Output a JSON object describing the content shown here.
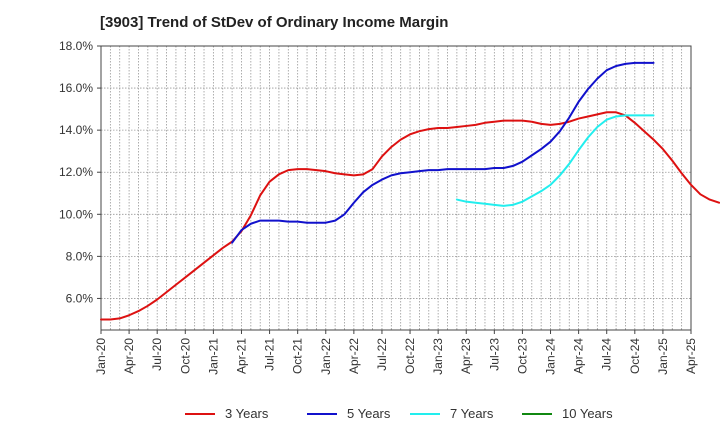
{
  "chart_data": {
    "type": "line",
    "title": "[3903]  Trend of StDev of Ordinary Income Margin",
    "xlabel": "",
    "ylabel": "",
    "x_start": "2020-01",
    "x_step_months": 1,
    "ylim": [
      4.5,
      18.0
    ],
    "y_ticks": [
      6.0,
      8.0,
      10.0,
      12.0,
      14.0,
      16.0,
      18.0
    ],
    "y_tick_labels": [
      "6.0%",
      "8.0%",
      "10.0%",
      "12.0%",
      "14.0%",
      "16.0%",
      "18.0%"
    ],
    "x_tick_labels": [
      "Jan-20",
      "Apr-20",
      "Jul-20",
      "Oct-20",
      "Jan-21",
      "Apr-21",
      "Jul-21",
      "Oct-21",
      "Jan-22",
      "Apr-22",
      "Jul-22",
      "Oct-22",
      "Jan-23",
      "Apr-23",
      "Jul-23",
      "Oct-23",
      "Jan-24",
      "Apr-24",
      "Jul-24",
      "Oct-24",
      "Jan-25",
      "Apr-25"
    ],
    "grid": true,
    "legend_position": "bottom",
    "series": [
      {
        "name": "3 Years",
        "color": "#dd1111",
        "start": "2020-01",
        "values": [
          5.0,
          5.0,
          5.05,
          5.2,
          5.4,
          5.65,
          5.95,
          6.3,
          6.65,
          7.0,
          7.35,
          7.7,
          8.05,
          8.4,
          8.7,
          9.2,
          9.95,
          10.9,
          11.55,
          11.9,
          12.1,
          12.15,
          12.15,
          12.1,
          12.05,
          11.95,
          11.9,
          11.85,
          11.9,
          12.15,
          12.75,
          13.2,
          13.55,
          13.8,
          13.95,
          14.05,
          14.1,
          14.1,
          14.15,
          14.2,
          14.25,
          14.35,
          14.4,
          14.45,
          14.45,
          14.45,
          14.4,
          14.3,
          14.25,
          14.3,
          14.4,
          14.55,
          14.65,
          14.75,
          14.85,
          14.85,
          14.7,
          14.35,
          13.95,
          13.55,
          13.1,
          12.55,
          11.95,
          11.4,
          10.95,
          10.7,
          10.55
        ]
      },
      {
        "name": "5 Years",
        "color": "#1111cc",
        "start": "2021-03",
        "values": [
          8.65,
          9.25,
          9.55,
          9.7,
          9.7,
          9.7,
          9.65,
          9.65,
          9.6,
          9.6,
          9.6,
          9.7,
          10.0,
          10.55,
          11.05,
          11.4,
          11.65,
          11.85,
          11.95,
          12.0,
          12.05,
          12.1,
          12.1,
          12.15,
          12.15,
          12.15,
          12.15,
          12.15,
          12.2,
          12.2,
          12.3,
          12.5,
          12.8,
          13.1,
          13.45,
          13.95,
          14.6,
          15.35,
          15.95,
          16.45,
          16.85,
          17.05,
          17.15,
          17.2,
          17.2,
          17.2
        ]
      },
      {
        "name": "7 Years",
        "color": "#22eeee",
        "start": "2023-03",
        "values": [
          10.7,
          10.6,
          10.55,
          10.5,
          10.45,
          10.4,
          10.45,
          10.6,
          10.85,
          11.1,
          11.4,
          11.85,
          12.4,
          13.05,
          13.65,
          14.15,
          14.5,
          14.65,
          14.7,
          14.7,
          14.7,
          14.7
        ]
      },
      {
        "name": "10 Years",
        "color": "#118811",
        "start": null,
        "values": []
      }
    ]
  }
}
